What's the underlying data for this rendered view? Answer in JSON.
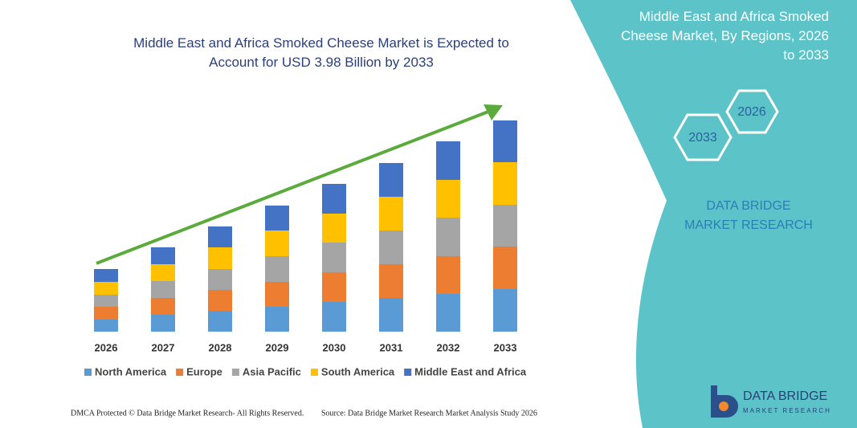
{
  "chart_data": {
    "type": "bar",
    "stacked": true,
    "title": "Middle East and Africa Smoked Cheese Market is Expected to Account for USD 3.98 Billion by 2033",
    "categories": [
      "2026",
      "2027",
      "2028",
      "2029",
      "2030",
      "2031",
      "2032",
      "2033"
    ],
    "series": [
      {
        "name": "North America",
        "color": "#5b9bd5",
        "values": [
          15,
          21,
          26,
          31,
          37,
          42,
          47,
          53
        ]
      },
      {
        "name": "Europe",
        "color": "#ed7d31",
        "values": [
          16,
          21,
          26,
          31,
          37,
          42,
          47,
          53
        ]
      },
      {
        "name": "Asia Pacific",
        "color": "#a5a5a5",
        "values": [
          15,
          21,
          26,
          32,
          37,
          42,
          48,
          52
        ]
      },
      {
        "name": "South America",
        "color": "#ffc000",
        "values": [
          16,
          21,
          27,
          32,
          36,
          42,
          47,
          53
        ]
      },
      {
        "name": "Middle East and Africa",
        "color": "#4472c4",
        "values": [
          16,
          21,
          26,
          31,
          37,
          42,
          48,
          52
        ]
      }
    ],
    "legend": "bottom"
  },
  "panel": {
    "title": "Middle East and Africa Smoked Cheese Market, By Regions, 2026 to 2033",
    "hex_start": "2026",
    "hex_end": "2033",
    "brand": "DATA BRIDGE MARKET RESEARCH"
  },
  "logo": {
    "name": "DATA BRIDGE",
    "tagline": "MARKET RESEARCH"
  },
  "footer": {
    "left": "DMCA Protected © Data Bridge Market Research- All Rights Reserved.",
    "right": "Source: Data Bridge Market Research Market Analysis Study 2026"
  }
}
